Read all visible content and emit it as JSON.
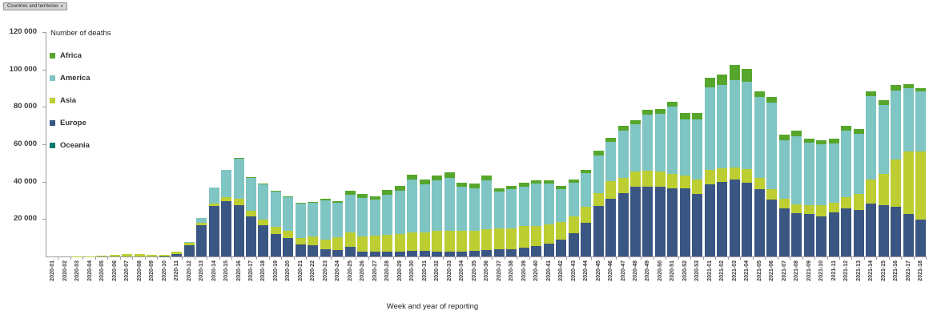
{
  "toolbar": {
    "filter_label": "Countries and territories",
    "filter_caret": "▾"
  },
  "chart_data": {
    "type": "bar",
    "stacked": true,
    "title": "Number of deaths",
    "xlabel": "Week and year of reporting",
    "ylabel": "Number of deaths",
    "ylim": [
      0,
      120000
    ],
    "grid": false,
    "legend_position": "upper-left-inside",
    "yticks": [
      {
        "value": 20000,
        "label": "20 000"
      },
      {
        "value": 40000,
        "label": "40 000"
      },
      {
        "value": 60000,
        "label": "60 000"
      },
      {
        "value": 80000,
        "label": "80 000"
      },
      {
        "value": 100000,
        "label": "100 000"
      },
      {
        "value": 120000,
        "label": "120 000"
      }
    ],
    "stack_order_bottom_to_top": [
      "Oceania",
      "Europe",
      "Asia",
      "America",
      "Africa"
    ],
    "categories": [
      "2020-01",
      "2020-02",
      "2020-03",
      "2020-04",
      "2020-05",
      "2020-06",
      "2020-07",
      "2020-08",
      "2020-09",
      "2020-10",
      "2020-11",
      "2020-12",
      "2020-13",
      "2020-14",
      "2020-15",
      "2020-16",
      "2020-17",
      "2020-18",
      "2020-19",
      "2020-20",
      "2020-21",
      "2020-22",
      "2020-23",
      "2020-24",
      "2020-25",
      "2020-26",
      "2020-27",
      "2020-28",
      "2020-29",
      "2020-30",
      "2020-31",
      "2020-32",
      "2020-33",
      "2020-34",
      "2020-35",
      "2020-36",
      "2020-37",
      "2020-38",
      "2020-39",
      "2020-40",
      "2020-41",
      "2020-42",
      "2020-43",
      "2020-44",
      "2020-45",
      "2020-46",
      "2020-47",
      "2020-48",
      "2020-49",
      "2020-50",
      "2020-51",
      "2020-52",
      "2020-53",
      "2021-01",
      "2021-02",
      "2021-03",
      "2021-04",
      "2021-05",
      "2021-06",
      "2021-07",
      "2021-08",
      "2021-09",
      "2021-10",
      "2021-11",
      "2021-12",
      "2021-13",
      "2021-14",
      "2021-15",
      "2021-16",
      "2021-17",
      "2021-18"
    ],
    "series": [
      {
        "name": "Africa",
        "color": "#55A62B",
        "values": [
          0,
          0,
          0,
          0,
          0,
          0,
          0,
          0,
          0,
          0,
          0,
          100,
          250,
          300,
          400,
          500,
          500,
          400,
          400,
          400,
          400,
          400,
          700,
          800,
          2200,
          2000,
          2000,
          2400,
          2450,
          2900,
          2500,
          2700,
          2900,
          2400,
          2300,
          2500,
          1900,
          1900,
          1900,
          1800,
          1700,
          1500,
          1750,
          2000,
          2500,
          2200,
          2600,
          2300,
          2600,
          2500,
          2650,
          3200,
          3500,
          5100,
          5500,
          8300,
          7000,
          3200,
          3200,
          2900,
          2600,
          2200,
          2200,
          2500,
          2500,
          2500,
          2600,
          2450,
          2600,
          2200,
          1750
        ]
      },
      {
        "name": "America",
        "color": "#7EC5C3",
        "values": [
          0,
          0,
          0,
          0,
          0,
          0,
          0,
          0,
          0,
          0,
          0,
          500,
          2500,
          8400,
          14600,
          21100,
          17800,
          18600,
          19100,
          17900,
          18500,
          18000,
          21000,
          18500,
          20000,
          20750,
          19300,
          21500,
          23250,
          28200,
          25450,
          27000,
          28700,
          23700,
          22650,
          26200,
          19550,
          20700,
          21300,
          22400,
          21800,
          17650,
          18100,
          17900,
          20300,
          21000,
          25600,
          25350,
          30000,
          30900,
          35800,
          30200,
          32300,
          44200,
          44700,
          46800,
          46550,
          43450,
          46100,
          31200,
          36500,
          33300,
          32200,
          31600,
          35600,
          32400,
          44500,
          37000,
          37000,
          33800,
          32250
        ]
      },
      {
        "name": "Asia",
        "color": "#BDCE32",
        "values": [
          15,
          25,
          50,
          100,
          350,
          700,
          1150,
          1150,
          750,
          900,
          1150,
          1200,
          1500,
          1300,
          2000,
          3600,
          2900,
          3300,
          3700,
          3900,
          3500,
          4700,
          5100,
          7000,
          8000,
          8000,
          8400,
          9000,
          9400,
          9900,
          10150,
          10900,
          10900,
          10900,
          11000,
          11200,
          11150,
          11200,
          11300,
          10900,
          10400,
          9700,
          9000,
          8400,
          6800,
          9400,
          8000,
          8250,
          8400,
          8000,
          8100,
          6800,
          7700,
          7700,
          7100,
          6500,
          7250,
          5800,
          5500,
          5400,
          4800,
          4600,
          6100,
          5100,
          6100,
          8250,
          12750,
          16700,
          25400,
          33500,
          36400
        ]
      },
      {
        "name": "Europe",
        "color": "#3A5683",
        "values": [
          0,
          0,
          0,
          0,
          0,
          0,
          0,
          0,
          0,
          150,
          1450,
          6100,
          16500,
          27000,
          29500,
          27400,
          21400,
          16500,
          12000,
          9800,
          6300,
          5900,
          4000,
          3400,
          5000,
          2600,
          2600,
          2600,
          2600,
          2900,
          2900,
          2600,
          2600,
          2600,
          2900,
          3300,
          3800,
          4000,
          4800,
          5500,
          6700,
          8850,
          12500,
          18100,
          27000,
          30900,
          33800,
          37100,
          37400,
          37400,
          36250,
          36400,
          33350,
          38400,
          40000,
          41000,
          39600,
          36000,
          30500,
          25500,
          23200,
          22900,
          21500,
          23600,
          25800,
          25000,
          28300,
          27250,
          26500,
          22500,
          19600
        ]
      },
      {
        "name": "Oceania",
        "color": "#017B6F",
        "values": [
          0,
          0,
          0,
          0,
          0,
          0,
          0,
          0,
          0,
          0,
          0,
          0,
          20,
          20,
          20,
          20,
          20,
          20,
          20,
          20,
          20,
          20,
          20,
          20,
          20,
          20,
          20,
          20,
          20,
          20,
          20,
          20,
          20,
          20,
          20,
          20,
          20,
          20,
          20,
          20,
          20,
          20,
          20,
          20,
          20,
          20,
          20,
          20,
          20,
          20,
          20,
          20,
          20,
          20,
          20,
          20,
          20,
          20,
          20,
          20,
          20,
          20,
          20,
          20,
          20,
          20,
          20,
          20,
          20,
          20,
          20
        ]
      }
    ]
  }
}
